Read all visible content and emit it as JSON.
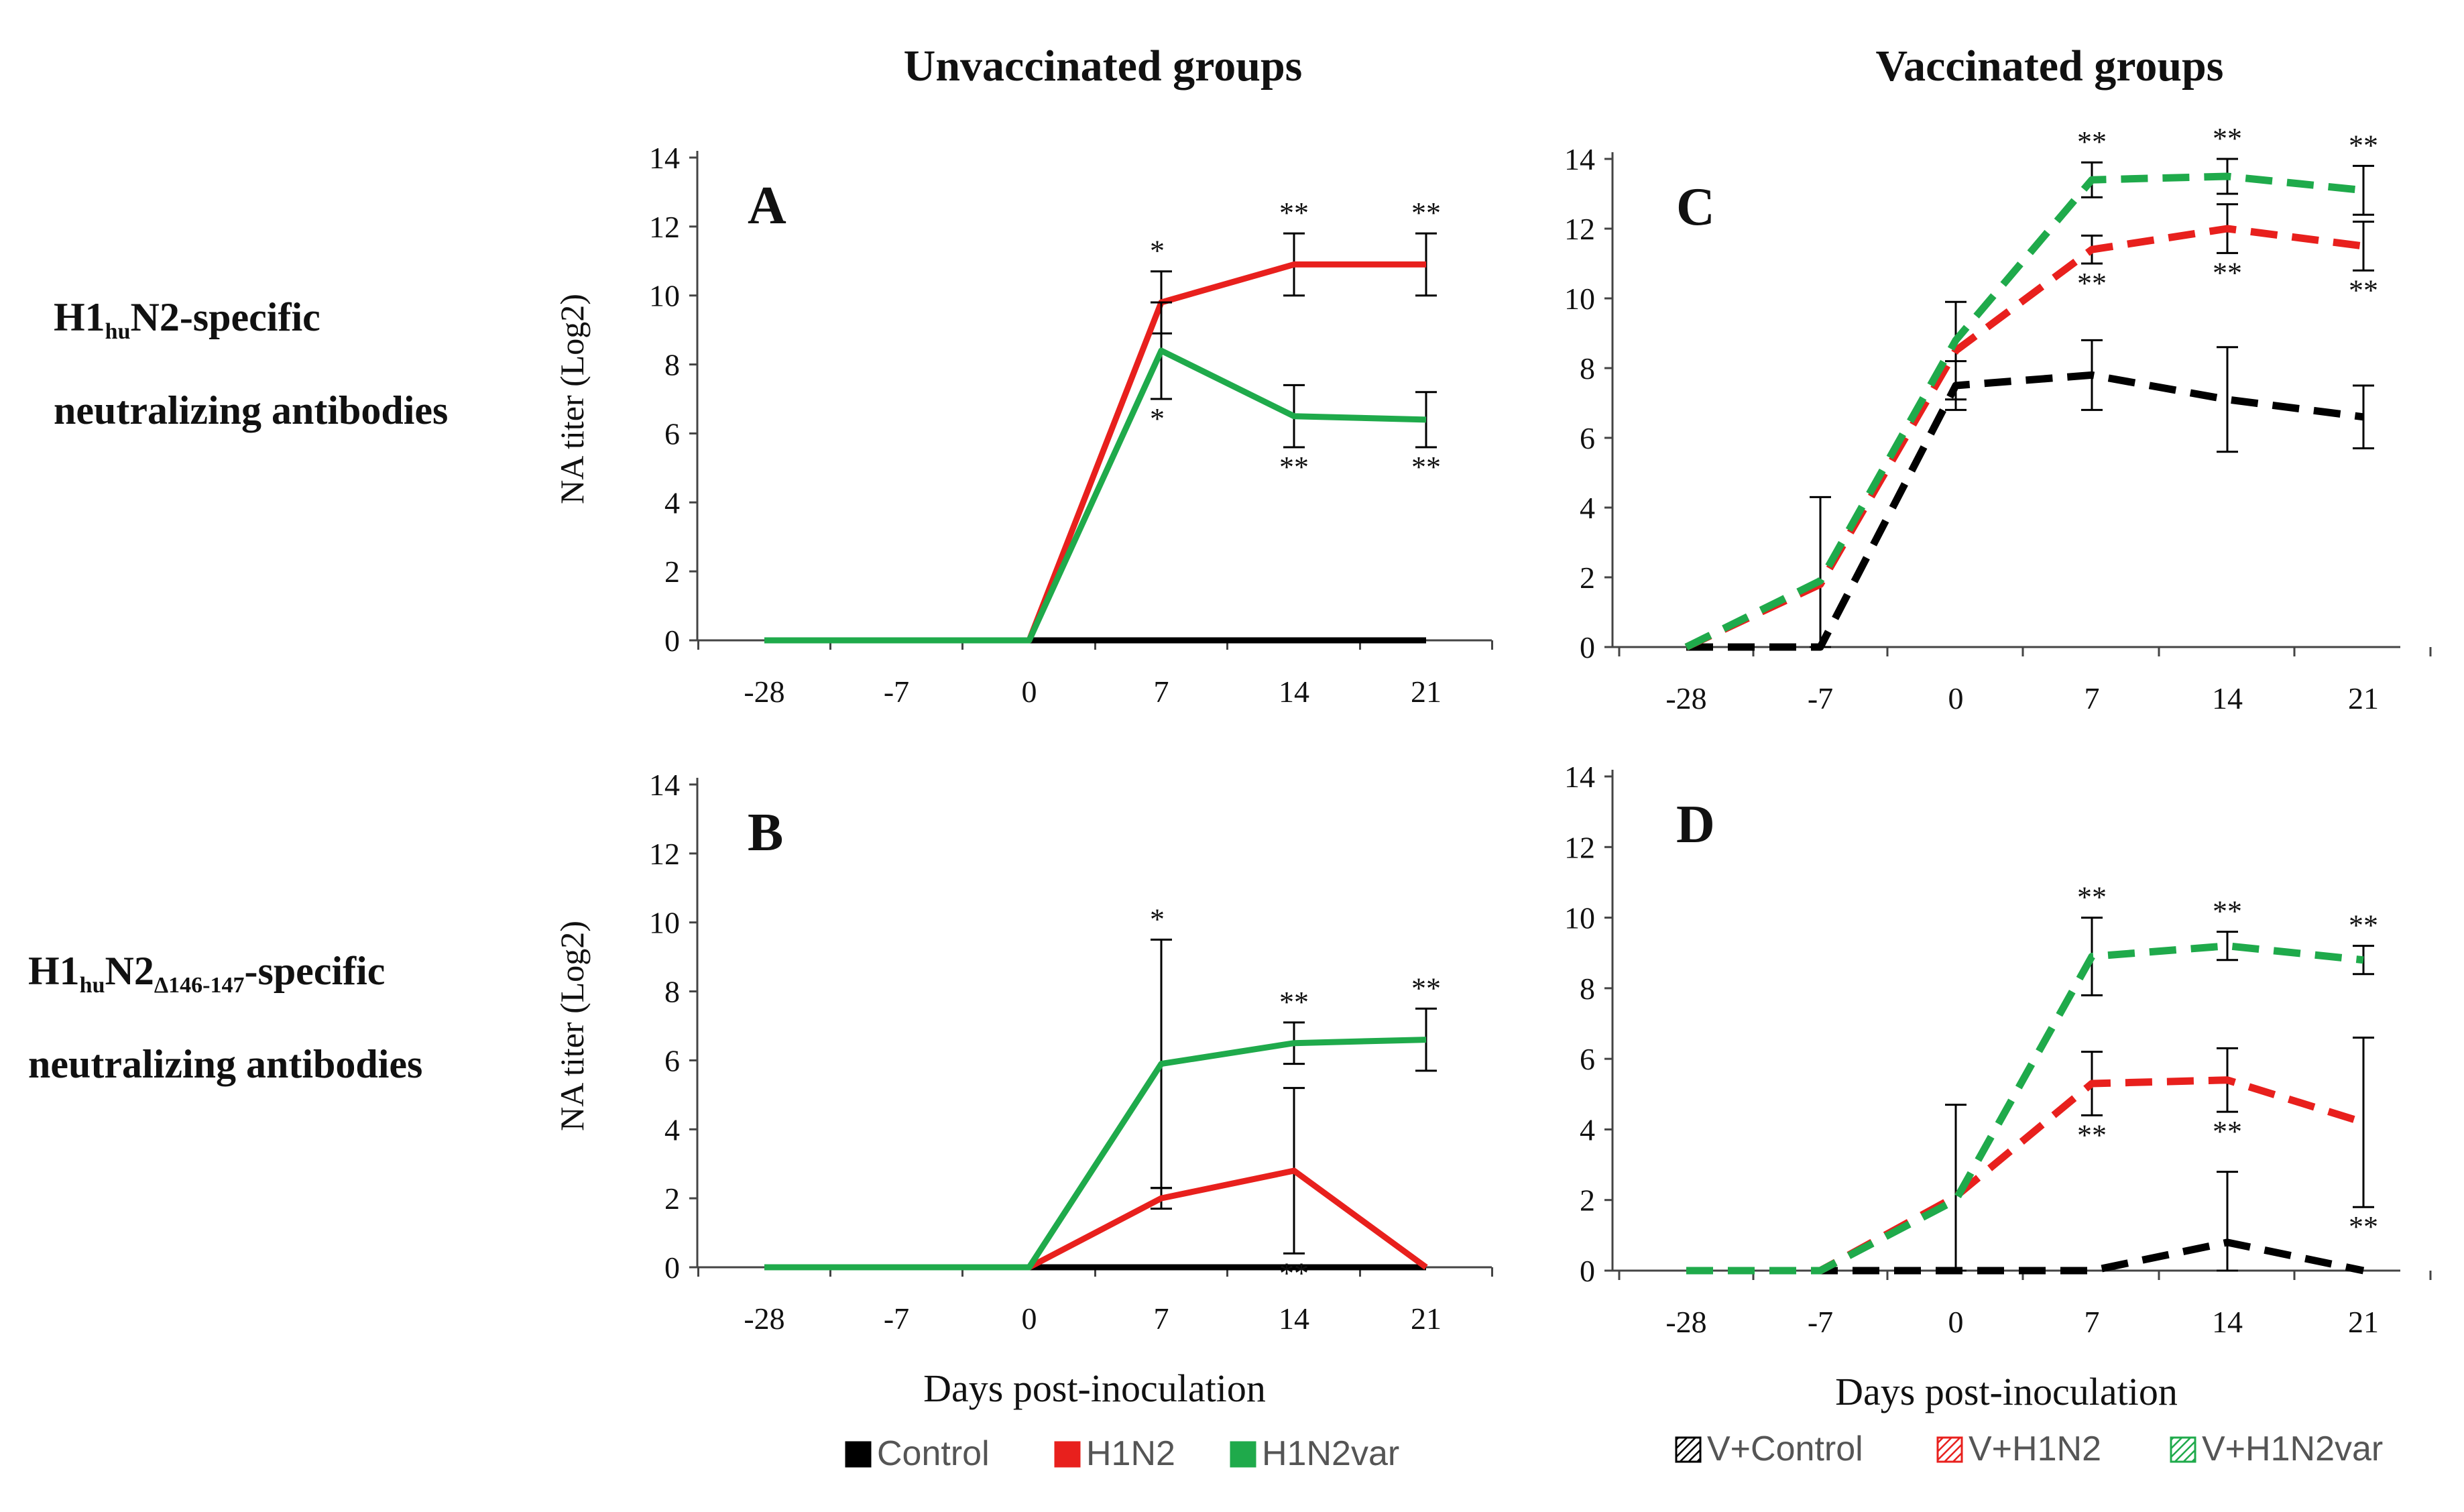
{
  "column_titles": {
    "left": "Unvaccinated groups",
    "right": "Vaccinated groups"
  },
  "row_labels": {
    "top": {
      "main1": "H1",
      "sub1": "hu",
      "main2": "N2-specific",
      "line2": "neutralizing antibodies"
    },
    "bottom": {
      "main1": "H1",
      "sub1": "hu",
      "main2": "N2",
      "sub2": "Δ146-147",
      "main3": "-specific",
      "line2": "neutralizing antibodies"
    }
  },
  "x_axis_title": "Days post-inoculation",
  "y_axis_title": "NA titer (Log2)",
  "legends": {
    "left": [
      {
        "label": "Control",
        "color": "#000000",
        "style": "solid"
      },
      {
        "label": "H1N2",
        "color": "#e8201d",
        "style": "solid"
      },
      {
        "label": "H1N2var",
        "color": "#1faa4b",
        "style": "solid"
      }
    ],
    "right": [
      {
        "label": "V+Control",
        "color": "#000000",
        "style": "hatched"
      },
      {
        "label": "V+H1N2",
        "color": "#e8201d",
        "style": "hatched"
      },
      {
        "label": "V+H1N2var",
        "color": "#1faa4b",
        "style": "hatched"
      }
    ]
  },
  "chart_data": [
    {
      "panel": "A",
      "type": "line",
      "style": "solid",
      "categories": [
        "-28",
        "-7",
        "0",
        "7",
        "14",
        "21"
      ],
      "ylim": [
        0,
        14
      ],
      "yticks": [
        0,
        2,
        4,
        6,
        8,
        10,
        12,
        14
      ],
      "ylabel": "NA titer (Log2)",
      "xlabel": "",
      "series": [
        {
          "name": "Control",
          "color": "#000000",
          "values": [
            0,
            0,
            0,
            0,
            0,
            0
          ],
          "errors": [
            0,
            0,
            0,
            0,
            0,
            0
          ],
          "labels": [
            "",
            "",
            "",
            "",
            "",
            ""
          ]
        },
        {
          "name": "H1N2",
          "color": "#e8201d",
          "values": [
            0,
            0,
            0,
            9.8,
            10.9,
            10.9
          ],
          "errors": [
            0,
            0,
            0,
            0.9,
            0.9,
            0.9
          ],
          "labels": [
            "",
            "",
            "",
            "*",
            "**",
            "**"
          ]
        },
        {
          "name": "H1N2var",
          "color": "#1faa4b",
          "values": [
            0,
            0,
            0,
            8.4,
            6.5,
            6.4
          ],
          "errors": [
            0,
            0,
            0,
            1.4,
            0.9,
            0.8
          ],
          "labels": [
            "",
            "",
            "",
            "*",
            "**",
            "**"
          ]
        }
      ]
    },
    {
      "panel": "B",
      "type": "line",
      "style": "solid",
      "categories": [
        "-28",
        "-7",
        "0",
        "7",
        "14",
        "21"
      ],
      "ylim": [
        0,
        14
      ],
      "yticks": [
        0,
        2,
        4,
        6,
        8,
        10,
        12,
        14
      ],
      "ylabel": "NA titer (Log2)",
      "xlabel": "Days post-inoculation",
      "series": [
        {
          "name": "Control",
          "color": "#000000",
          "values": [
            0,
            0,
            0,
            0,
            0,
            0
          ],
          "errors": [
            0,
            0,
            0,
            0,
            0,
            0
          ],
          "labels": [
            "",
            "",
            "",
            "",
            "",
            ""
          ]
        },
        {
          "name": "H1N2",
          "color": "#e8201d",
          "values": [
            0,
            0,
            0,
            2.0,
            2.8,
            0
          ],
          "errors": [
            0,
            0,
            0,
            0.3,
            2.4,
            0
          ],
          "labels": [
            "",
            "",
            "",
            "",
            "**",
            ""
          ]
        },
        {
          "name": "H1N2var",
          "color": "#1faa4b",
          "values": [
            0,
            0,
            0,
            5.9,
            6.5,
            6.6
          ],
          "errors": [
            0,
            0,
            0,
            3.6,
            0.6,
            0.9
          ],
          "labels": [
            "",
            "",
            "",
            "*",
            "**",
            "**"
          ]
        }
      ]
    },
    {
      "panel": "C",
      "type": "line",
      "style": "dashed",
      "categories": [
        "-28",
        "-7",
        "0",
        "7",
        "14",
        "21"
      ],
      "ylim": [
        0,
        14
      ],
      "yticks": [
        0,
        2,
        4,
        6,
        8,
        10,
        12,
        14
      ],
      "ylabel": "",
      "xlabel": "",
      "series": [
        {
          "name": "V+Control",
          "color": "#000000",
          "values": [
            0,
            0,
            7.5,
            7.8,
            7.1,
            6.6
          ],
          "errors": [
            0,
            0,
            0.7,
            1.0,
            1.5,
            0.9
          ],
          "labels": [
            "",
            "",
            "",
            "",
            "",
            ""
          ]
        },
        {
          "name": "V+H1N2",
          "color": "#e8201d",
          "values": [
            0,
            1.8,
            8.5,
            11.4,
            12.0,
            11.5
          ],
          "errors": [
            0,
            2.5,
            1.4,
            0.4,
            0.7,
            0.7
          ],
          "labels": [
            "",
            "",
            "",
            "**",
            "**",
            "**"
          ]
        },
        {
          "name": "V+H1N2var",
          "color": "#1faa4b",
          "values": [
            0,
            1.9,
            8.8,
            13.4,
            13.5,
            13.1
          ],
          "errors": [
            0,
            0,
            0,
            0.5,
            0.5,
            0.7
          ],
          "labels": [
            "",
            "",
            "",
            "**",
            "**",
            "**"
          ]
        }
      ]
    },
    {
      "panel": "D",
      "type": "line",
      "style": "dashed",
      "categories": [
        "-28",
        "-7",
        "0",
        "7",
        "14",
        "21"
      ],
      "ylim": [
        0,
        14
      ],
      "yticks": [
        0,
        2,
        4,
        6,
        8,
        10,
        12,
        14
      ],
      "ylabel": "",
      "xlabel": "Days post-inoculation",
      "series": [
        {
          "name": "V+Control",
          "color": "#000000",
          "values": [
            0,
            0,
            0,
            0,
            0.8,
            0
          ],
          "errors": [
            0,
            0,
            0,
            0,
            2.0,
            0
          ],
          "labels": [
            "",
            "",
            "",
            "",
            "",
            ""
          ]
        },
        {
          "name": "V+H1N2",
          "color": "#e8201d",
          "values": [
            0,
            0,
            2.1,
            5.3,
            5.4,
            4.2
          ],
          "errors": [
            0,
            0,
            2.6,
            0.9,
            0.9,
            2.4
          ],
          "labels": [
            "",
            "",
            "",
            "**",
            "**",
            "**"
          ]
        },
        {
          "name": "V+H1N2var",
          "color": "#1faa4b",
          "values": [
            0,
            0,
            2.0,
            8.9,
            9.2,
            8.8
          ],
          "errors": [
            0,
            0,
            0,
            1.1,
            0.4,
            0.4
          ],
          "labels": [
            "",
            "",
            "",
            "**",
            "**",
            "**"
          ]
        }
      ]
    }
  ]
}
